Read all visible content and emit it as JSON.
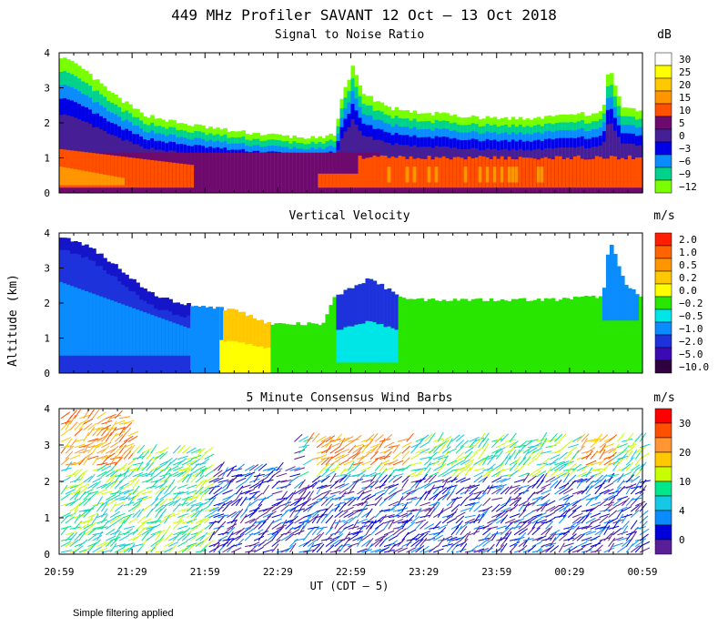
{
  "chart_data": [
    {
      "type": "heatmap",
      "figure_title": "449 MHz Profiler SAVANT 12 Oct – 13 Oct 2018",
      "title": "Signal to Noise Ratio",
      "unit": "dB",
      "ylabel": "Altitude (km)",
      "xlabel": "UT (CDT – 5)",
      "ylim": [
        0,
        4
      ],
      "yticks": [
        "0",
        "1",
        "2",
        "3",
        "4"
      ],
      "xticks": [
        "20:59",
        "21:29",
        "21:59",
        "22:29",
        "22:59",
        "23:29",
        "23:59",
        "00:29",
        "00:59"
      ],
      "colorbar": {
        "labels": [
          "30",
          "25",
          "20",
          "15",
          "10",
          "5",
          "0",
          "−3",
          "−6",
          "−9",
          "−12"
        ],
        "colors": [
          "#ffffff",
          "#ffff00",
          "#ffc800",
          "#ff9600",
          "#ff5000",
          "#6e0a6e",
          "#461e96",
          "#0000e6",
          "#0a8cff",
          "#00d28c",
          "#78ff00"
        ]
      },
      "levels": [
        "lime",
        "green",
        "cyan",
        "blue",
        "dpurple",
        "purple",
        "red",
        "orange"
      ]
    },
    {
      "type": "heatmap",
      "title": "Vertical Velocity",
      "unit": "m/s",
      "ylim": [
        0,
        4
      ],
      "yticks": [
        "0",
        "1",
        "2",
        "3",
        "4"
      ],
      "colorbar": {
        "labels": [
          "2.0",
          "1.0",
          "0.5",
          "0.2",
          "0.0",
          "−0.2",
          "−0.5",
          "−1.0",
          "−2.0",
          "−5.0",
          "−10.0"
        ],
        "colors": [
          "#ff1e00",
          "#ff6400",
          "#ff9600",
          "#ffc800",
          "#ffff00",
          "#28e600",
          "#00e6e6",
          "#0a8cff",
          "#1e32dc",
          "#3c0ab4",
          "#300040"
        ]
      }
    },
    {
      "type": "scatter",
      "title": "5 Minute Consensus Wind Barbs",
      "unit": "m/s",
      "ylim": [
        0,
        4
      ],
      "yticks": [
        "0",
        "1",
        "2",
        "3",
        "4"
      ],
      "colorbar": {
        "labels": [
          "30",
          "20",
          "10",
          "4",
          "0"
        ],
        "colors": [
          "#ff0000",
          "#ff5000",
          "#ff9632",
          "#ffc800",
          "#c8ff00",
          "#00e68c",
          "#14c8e6",
          "#0a8cff",
          "#0000dc",
          "#5a1e96"
        ]
      }
    }
  ],
  "footnote": "Simple filtering applied"
}
